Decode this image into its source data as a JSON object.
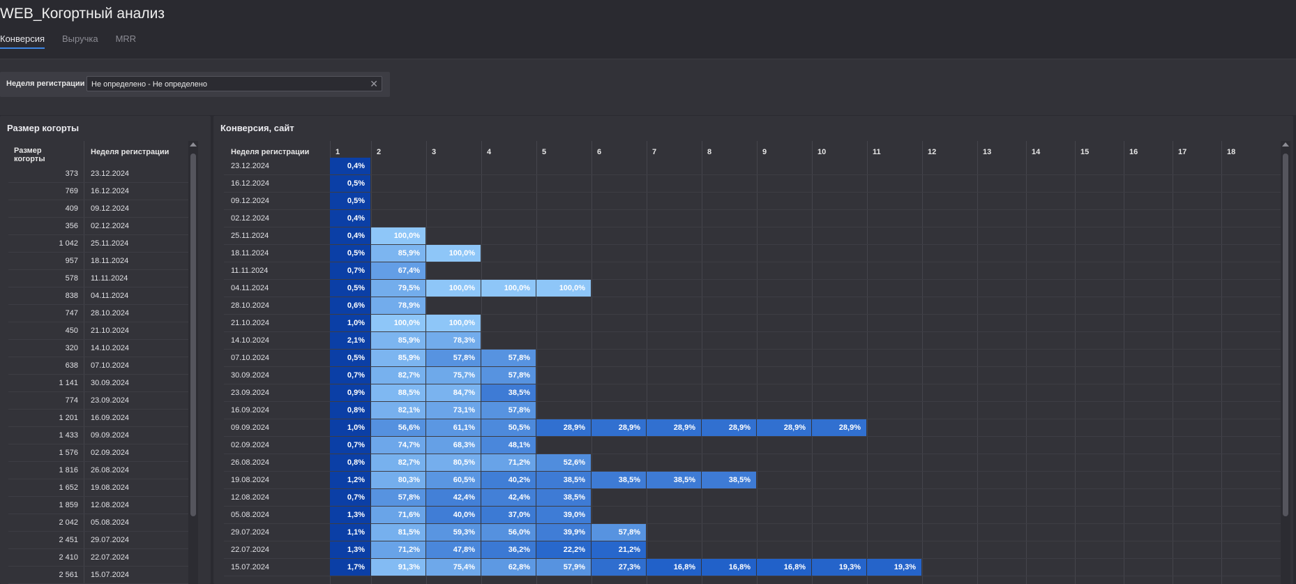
{
  "header": {
    "title": "WEB_Когортный анализ",
    "tabs": [
      {
        "label": "Конверсия",
        "active": true
      },
      {
        "label": "Выручка",
        "active": false
      },
      {
        "label": "MRR",
        "active": false
      }
    ]
  },
  "filter": {
    "label": "Неделя регистрации",
    "value": "Не определено - Не определено",
    "clear_icon": "close-icon"
  },
  "left_panel": {
    "title": "Размер когорты",
    "col_size": "Размер когорты",
    "col_week": "Неделя регистрации",
    "rows": [
      {
        "size": "373",
        "week": "23.12.2024"
      },
      {
        "size": "769",
        "week": "16.12.2024"
      },
      {
        "size": "409",
        "week": "09.12.2024"
      },
      {
        "size": "356",
        "week": "02.12.2024"
      },
      {
        "size": "1 042",
        "week": "25.11.2024"
      },
      {
        "size": "957",
        "week": "18.11.2024"
      },
      {
        "size": "578",
        "week": "11.11.2024"
      },
      {
        "size": "838",
        "week": "04.11.2024"
      },
      {
        "size": "747",
        "week": "28.10.2024"
      },
      {
        "size": "450",
        "week": "21.10.2024"
      },
      {
        "size": "320",
        "week": "14.10.2024"
      },
      {
        "size": "638",
        "week": "07.10.2024"
      },
      {
        "size": "1 141",
        "week": "30.09.2024"
      },
      {
        "size": "774",
        "week": "23.09.2024"
      },
      {
        "size": "1 201",
        "week": "16.09.2024"
      },
      {
        "size": "1 433",
        "week": "09.09.2024"
      },
      {
        "size": "1 576",
        "week": "02.09.2024"
      },
      {
        "size": "1 816",
        "week": "26.08.2024"
      },
      {
        "size": "1 652",
        "week": "19.08.2024"
      },
      {
        "size": "1 859",
        "week": "12.08.2024"
      },
      {
        "size": "2 042",
        "week": "05.08.2024"
      },
      {
        "size": "2 451",
        "week": "29.07.2024"
      },
      {
        "size": "2 410",
        "week": "22.07.2024"
      },
      {
        "size": "2 561",
        "week": "15.07.2024"
      }
    ]
  },
  "right_panel": {
    "title": "Конверсия, сайт",
    "col_week": "Неделя регистрации",
    "columns": [
      "1",
      "2",
      "3",
      "4",
      "5",
      "6",
      "7",
      "8",
      "9",
      "10",
      "11",
      "12",
      "13",
      "14",
      "15",
      "16",
      "17",
      "18"
    ],
    "rows": [
      {
        "week": "23.12.2024",
        "values": [
          "0,4%"
        ]
      },
      {
        "week": "16.12.2024",
        "values": [
          "0,5%"
        ]
      },
      {
        "week": "09.12.2024",
        "values": [
          "0,5%"
        ]
      },
      {
        "week": "02.12.2024",
        "values": [
          "0,4%"
        ]
      },
      {
        "week": "25.11.2024",
        "values": [
          "0,4%",
          "100,0%"
        ]
      },
      {
        "week": "18.11.2024",
        "values": [
          "0,5%",
          "85,9%",
          "100,0%"
        ]
      },
      {
        "week": "11.11.2024",
        "values": [
          "0,7%",
          "67,4%"
        ]
      },
      {
        "week": "04.11.2024",
        "values": [
          "0,5%",
          "79,5%",
          "100,0%",
          "100,0%",
          "100,0%"
        ]
      },
      {
        "week": "28.10.2024",
        "values": [
          "0,6%",
          "78,9%"
        ]
      },
      {
        "week": "21.10.2024",
        "values": [
          "1,0%",
          "100,0%",
          "100,0%"
        ]
      },
      {
        "week": "14.10.2024",
        "values": [
          "2,1%",
          "85,9%",
          "78,3%"
        ]
      },
      {
        "week": "07.10.2024",
        "values": [
          "0,5%",
          "85,9%",
          "57,8%",
          "57,8%"
        ]
      },
      {
        "week": "30.09.2024",
        "values": [
          "0,7%",
          "82,7%",
          "75,7%",
          "57,8%"
        ]
      },
      {
        "week": "23.09.2024",
        "values": [
          "0,9%",
          "88,5%",
          "84,7%",
          "38,5%"
        ]
      },
      {
        "week": "16.09.2024",
        "values": [
          "0,8%",
          "82,1%",
          "73,1%",
          "57,8%"
        ]
      },
      {
        "week": "09.09.2024",
        "values": [
          "1,0%",
          "56,6%",
          "61,1%",
          "50,5%",
          "28,9%",
          "28,9%",
          "28,9%",
          "28,9%",
          "28,9%",
          "28,9%"
        ]
      },
      {
        "week": "02.09.2024",
        "values": [
          "0,7%",
          "74,7%",
          "68,3%",
          "48,1%"
        ]
      },
      {
        "week": "26.08.2024",
        "values": [
          "0,8%",
          "82,7%",
          "80,5%",
          "71,2%",
          "52,6%"
        ]
      },
      {
        "week": "19.08.2024",
        "values": [
          "1,2%",
          "80,3%",
          "60,5%",
          "40,2%",
          "38,5%",
          "38,5%",
          "38,5%",
          "38,5%"
        ]
      },
      {
        "week": "12.08.2024",
        "values": [
          "0,7%",
          "57,8%",
          "42,4%",
          "42,4%",
          "38,5%"
        ]
      },
      {
        "week": "05.08.2024",
        "values": [
          "1,3%",
          "71,6%",
          "40,0%",
          "37,0%",
          "39,0%"
        ]
      },
      {
        "week": "29.07.2024",
        "values": [
          "1,1%",
          "81,5%",
          "59,3%",
          "56,0%",
          "39,9%",
          "57,8%"
        ]
      },
      {
        "week": "22.07.2024",
        "values": [
          "1,3%",
          "71,2%",
          "47,8%",
          "36,2%",
          "22,2%",
          "21,2%"
        ]
      },
      {
        "week": "15.07.2024",
        "values": [
          "1,7%",
          "91,3%",
          "75,4%",
          "62,8%",
          "57,9%",
          "27,3%",
          "16,8%",
          "16,8%",
          "16,8%",
          "19,3%",
          "19,3%"
        ]
      }
    ]
  },
  "colors": {
    "first_col": "#0b3fa6",
    "scale_low": "#1f5fc8",
    "scale_high": "#8ec6f8"
  }
}
